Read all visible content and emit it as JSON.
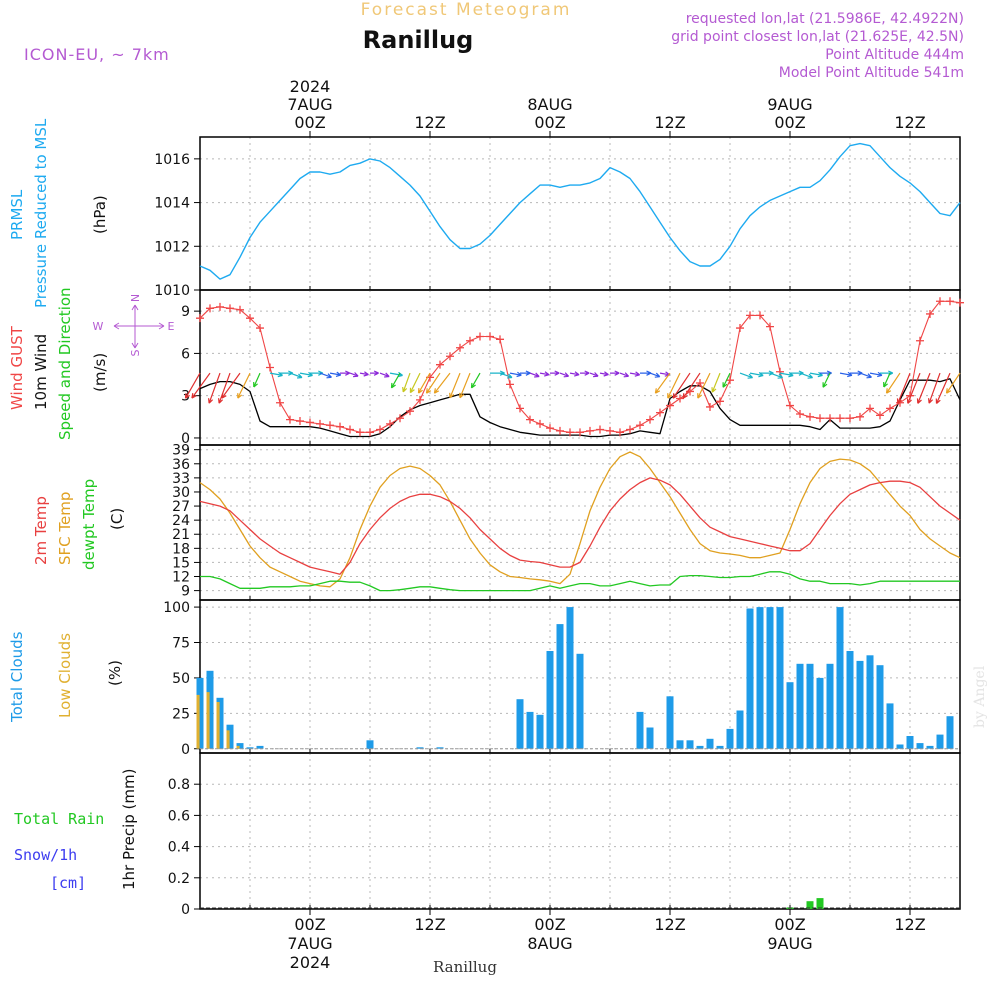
{
  "header": {
    "super_title": "Forecast Meteogram",
    "location": "Ranillug",
    "model": "ICON-EU, ~ 7km",
    "requested": "requested lon,lat (21.5986E, 42.4922N)",
    "grid_point": "grid point closest lon,lat (21.625E, 42.5N)",
    "point_altitude": "Point Altitude 444m",
    "model_altitude": "Model Point Altitude 541m",
    "footer_location": "Ranillug",
    "watermark": "by Angel"
  },
  "time_axis": {
    "top_labels": [
      {
        "hour": 0,
        "lines": [
          "2024",
          "7AUG",
          "00Z"
        ]
      },
      {
        "hour": 12,
        "lines": [
          "12Z"
        ]
      },
      {
        "hour": 24,
        "lines": [
          "8AUG",
          "00Z"
        ]
      },
      {
        "hour": 36,
        "lines": [
          "12Z"
        ]
      },
      {
        "hour": 48,
        "lines": [
          "9AUG",
          "00Z"
        ]
      },
      {
        "hour": 60,
        "lines": [
          "12Z"
        ]
      }
    ],
    "bottom_labels": [
      {
        "hour": 0,
        "lines": [
          "00Z",
          "7AUG",
          "2024"
        ]
      },
      {
        "hour": 12,
        "lines": [
          "12Z"
        ]
      },
      {
        "hour": 24,
        "lines": [
          "00Z",
          "8AUG"
        ]
      },
      {
        "hour": 36,
        "lines": [
          "12Z"
        ]
      },
      {
        "hour": 48,
        "lines": [
          "00Z",
          "9AUG"
        ]
      },
      {
        "hour": 60,
        "lines": [
          "12Z"
        ]
      }
    ]
  },
  "colors": {
    "pressure": "#1eaaf0",
    "gust": "#f04646",
    "wind": "#000000",
    "temp": "#e84040",
    "sfc": "#e0a020",
    "dew": "#22c822",
    "total_cloud": "#1e9be8",
    "low_cloud": "#e0b030",
    "rain": "#22c822",
    "snow": "#3c3cf0",
    "meta": "#b45ad2",
    "super_title": "#f0c878"
  },
  "chart_data": [
    {
      "type": "line",
      "panel": "pressure",
      "labels": [
        "PRMSL",
        "Pressure Reduced to MSL"
      ],
      "unit": "(hPa)",
      "ylim": [
        1010,
        1017
      ],
      "yticks": [
        1010,
        1012,
        1014,
        1016
      ],
      "x_range_hours": [
        -11,
        65
      ],
      "x": [
        -11,
        -10,
        -9,
        -8,
        -7,
        -6,
        -5,
        -4,
        -3,
        -2,
        -1,
        0,
        1,
        2,
        3,
        4,
        5,
        6,
        7,
        8,
        9,
        10,
        11,
        12,
        13,
        14,
        15,
        16,
        17,
        18,
        19,
        20,
        21,
        22,
        23,
        24,
        25,
        26,
        27,
        28,
        29,
        30,
        31,
        32,
        33,
        34,
        35,
        36,
        37,
        38,
        39,
        40,
        41,
        42,
        43,
        44,
        45,
        46,
        47,
        48,
        49,
        50,
        51,
        52,
        53,
        54,
        55,
        56,
        57,
        58,
        59,
        60,
        61,
        62,
        63,
        64,
        65
      ],
      "values": [
        1011.1,
        1010.9,
        1010.5,
        1010.7,
        1011.5,
        1012.4,
        1013.1,
        1013.6,
        1014.1,
        1014.6,
        1015.1,
        1015.4,
        1015.4,
        1015.3,
        1015.4,
        1015.7,
        1015.8,
        1016.0,
        1015.9,
        1015.6,
        1015.2,
        1014.8,
        1014.3,
        1013.6,
        1012.9,
        1012.3,
        1011.9,
        1011.9,
        1012.1,
        1012.5,
        1013.0,
        1013.5,
        1014.0,
        1014.4,
        1014.8,
        1014.8,
        1014.7,
        1014.8,
        1014.8,
        1014.9,
        1015.1,
        1015.6,
        1015.4,
        1015.1,
        1014.5,
        1013.8,
        1013.1,
        1012.4,
        1011.8,
        1011.3,
        1011.1,
        1011.1,
        1011.4,
        1012.0,
        1012.8,
        1013.4,
        1013.8,
        1014.1,
        1014.3,
        1014.5,
        1014.7,
        1014.7,
        1015.0,
        1015.5,
        1016.1,
        1016.6,
        1016.7,
        1016.6,
        1016.1,
        1015.6,
        1015.2,
        1014.9,
        1014.5,
        1014.0,
        1013.5,
        1013.4,
        1014.0
      ]
    },
    {
      "type": "line",
      "panel": "wind",
      "labels": [
        "Wind GUST",
        "10m Wind",
        "Speed and Direction"
      ],
      "unit": "(m/s)",
      "compass": [
        "N",
        "W",
        "E",
        "S"
      ],
      "ylim": [
        -0.5,
        10.5
      ],
      "yticks": [
        0,
        3,
        6,
        9
      ],
      "x_range_hours": [
        -11,
        65
      ],
      "x": [
        -11,
        -10,
        -9,
        -8,
        -7,
        -6,
        -5,
        -4,
        -3,
        -2,
        -1,
        0,
        1,
        2,
        3,
        4,
        5,
        6,
        7,
        8,
        9,
        10,
        11,
        12,
        13,
        14,
        15,
        16,
        17,
        18,
        19,
        20,
        21,
        22,
        23,
        24,
        25,
        26,
        27,
        28,
        29,
        30,
        31,
        32,
        33,
        34,
        35,
        36,
        37,
        38,
        39,
        40,
        41,
        42,
        43,
        44,
        45,
        46,
        47,
        48,
        49,
        50,
        51,
        52,
        53,
        54,
        55,
        56,
        57,
        58,
        59,
        60,
        61,
        62,
        63,
        64,
        65
      ],
      "series": [
        {
          "name": "Wind GUST",
          "values": [
            8.5,
            9.2,
            9.3,
            9.2,
            9.1,
            8.5,
            7.8,
            5.0,
            2.5,
            1.3,
            1.2,
            1.1,
            1.0,
            0.9,
            0.8,
            0.6,
            0.4,
            0.4,
            0.6,
            1.0,
            1.4,
            1.9,
            2.7,
            4.3,
            5.2,
            5.8,
            6.4,
            6.9,
            7.2,
            7.2,
            7.0,
            3.8,
            2.1,
            1.3,
            1.0,
            0.7,
            0.5,
            0.4,
            0.4,
            0.5,
            0.6,
            0.5,
            0.4,
            0.6,
            0.9,
            1.3,
            1.8,
            2.3,
            2.8,
            3.3,
            3.9,
            2.2,
            2.6,
            4.1,
            7.8,
            8.7,
            8.7,
            7.9,
            4.7,
            2.3,
            1.7,
            1.5,
            1.4,
            1.4,
            1.4,
            1.4,
            1.5,
            2.1,
            1.6,
            2.1,
            2.5,
            3.0,
            6.9,
            8.8,
            9.7,
            9.7,
            9.6
          ]
        },
        {
          "name": "10m Wind",
          "values": [
            3.5,
            3.8,
            4.0,
            4.0,
            3.8,
            3.3,
            1.2,
            0.8,
            0.8,
            0.8,
            0.8,
            0.8,
            0.7,
            0.5,
            0.3,
            0.1,
            0.1,
            0.1,
            0.3,
            0.8,
            1.5,
            2.0,
            2.3,
            2.5,
            2.7,
            2.9,
            3.1,
            3.1,
            1.5,
            1.1,
            0.8,
            0.6,
            0.4,
            0.3,
            0.2,
            0.2,
            0.2,
            0.2,
            0.2,
            0.1,
            0.1,
            0.2,
            0.2,
            0.3,
            0.5,
            0.4,
            0.3,
            2.8,
            3.3,
            3.7,
            3.7,
            3.3,
            2.1,
            1.3,
            0.9,
            0.9,
            0.9,
            0.9,
            0.9,
            0.9,
            0.9,
            0.8,
            0.6,
            1.3,
            0.7,
            0.7,
            0.7,
            0.7,
            0.8,
            1.2,
            2.7,
            4.1,
            4.1,
            4.1,
            4.0,
            4.2,
            2.7
          ]
        }
      ]
    },
    {
      "type": "line",
      "panel": "temperature",
      "labels": [
        "2m Temp",
        "SFC Temp",
        "dewpt Temp"
      ],
      "unit": "(C)",
      "ylim": [
        7,
        40
      ],
      "yticks": [
        9,
        12,
        15,
        18,
        21,
        24,
        27,
        30,
        33,
        36,
        39
      ],
      "x_range_hours": [
        -11,
        65
      ],
      "x": [
        -11,
        -10,
        -9,
        -8,
        -7,
        -6,
        -5,
        -4,
        -3,
        -2,
        -1,
        0,
        1,
        2,
        3,
        4,
        5,
        6,
        7,
        8,
        9,
        10,
        11,
        12,
        13,
        14,
        15,
        16,
        17,
        18,
        19,
        20,
        21,
        22,
        23,
        24,
        25,
        26,
        27,
        28,
        29,
        30,
        31,
        32,
        33,
        34,
        35,
        36,
        37,
        38,
        39,
        40,
        41,
        42,
        43,
        44,
        45,
        46,
        47,
        48,
        49,
        50,
        51,
        52,
        53,
        54,
        55,
        56,
        57,
        58,
        59,
        60,
        61,
        62,
        63,
        64,
        65
      ],
      "series": [
        {
          "name": "2m Temp",
          "values": [
            28.0,
            27.5,
            27.0,
            26.0,
            24.0,
            22.0,
            20.0,
            18.5,
            17.0,
            16.0,
            15.0,
            14.0,
            13.5,
            13.0,
            12.5,
            15.0,
            19.0,
            22.0,
            24.5,
            26.5,
            28.0,
            29.0,
            29.5,
            29.5,
            29.0,
            28.0,
            26.5,
            24.5,
            22.0,
            20.0,
            18.0,
            16.5,
            15.5,
            15.2,
            15.0,
            14.5,
            14.0,
            14.0,
            15.0,
            18.5,
            22.5,
            26.0,
            28.5,
            30.5,
            32.0,
            33.0,
            32.5,
            31.5,
            29.5,
            27.0,
            24.5,
            22.5,
            21.5,
            20.5,
            20.0,
            19.5,
            19.0,
            18.5,
            18.0,
            17.5,
            17.5,
            19.0,
            22.0,
            25.0,
            27.5,
            29.5,
            30.5,
            31.5,
            32.0,
            32.3,
            32.3,
            32.0,
            31.0,
            29.0,
            27.0,
            25.5,
            24.0
          ]
        },
        {
          "name": "SFC Temp",
          "values": [
            32.0,
            30.5,
            28.5,
            25.5,
            22.0,
            18.5,
            16.0,
            14.0,
            13.0,
            12.0,
            11.0,
            10.5,
            10.0,
            9.8,
            11.5,
            16.0,
            22.0,
            27.0,
            31.0,
            33.5,
            35.0,
            35.5,
            35.0,
            33.5,
            31.5,
            28.0,
            24.0,
            20.0,
            17.0,
            14.5,
            13.0,
            12.0,
            11.8,
            11.5,
            11.3,
            11.0,
            10.5,
            12.5,
            19.0,
            26.0,
            31.0,
            35.0,
            37.5,
            38.5,
            37.5,
            35.0,
            32.0,
            29.0,
            25.5,
            22.0,
            19.0,
            17.5,
            17.0,
            16.8,
            16.5,
            16.0,
            16.0,
            16.5,
            17.0,
            22.0,
            27.5,
            32.0,
            35.0,
            36.5,
            37.0,
            36.8,
            36.0,
            34.5,
            32.0,
            29.5,
            27.0,
            25.0,
            22.0,
            20.0,
            18.5,
            17.0,
            16.0
          ]
        },
        {
          "name": "dewpt Temp",
          "values": [
            12.0,
            12.0,
            11.5,
            10.5,
            9.5,
            9.5,
            9.5,
            9.8,
            9.8,
            9.8,
            10.0,
            10.0,
            10.5,
            11.0,
            11.0,
            10.8,
            10.8,
            10.0,
            9.0,
            9.0,
            9.2,
            9.5,
            9.8,
            9.8,
            9.5,
            9.2,
            9.0,
            9.0,
            9.0,
            9.0,
            9.0,
            9.0,
            9.0,
            9.0,
            9.5,
            10.0,
            9.5,
            10.0,
            10.5,
            10.5,
            10.0,
            10.0,
            10.5,
            11.0,
            10.5,
            10.0,
            10.2,
            10.2,
            12.0,
            12.2,
            12.2,
            12.0,
            11.8,
            11.8,
            12.0,
            12.0,
            12.5,
            13.0,
            13.0,
            12.5,
            11.5,
            11.0,
            11.0,
            10.5,
            10.5,
            10.5,
            10.2,
            10.5,
            11.0,
            11.0,
            11.0,
            11.0,
            11.0,
            11.0,
            11.0,
            11.0,
            11.0
          ]
        }
      ]
    },
    {
      "type": "bar",
      "panel": "clouds",
      "labels": [
        "Total Clouds",
        "Low Clouds"
      ],
      "unit": "(%)",
      "ylim": [
        -3,
        105
      ],
      "yticks": [
        0,
        25,
        50,
        75,
        100
      ],
      "x_range_hours": [
        -11,
        65
      ],
      "x": [
        -11,
        -10,
        -9,
        -8,
        -7,
        -6,
        -5,
        -4,
        -3,
        -2,
        -1,
        0,
        1,
        2,
        3,
        4,
        5,
        6,
        7,
        8,
        9,
        10,
        11,
        12,
        13,
        14,
        15,
        16,
        17,
        18,
        19,
        20,
        21,
        22,
        23,
        24,
        25,
        26,
        27,
        28,
        29,
        30,
        31,
        32,
        33,
        34,
        35,
        36,
        37,
        38,
        39,
        40,
        41,
        42,
        43,
        44,
        45,
        46,
        47,
        48,
        49,
        50,
        51,
        52,
        53,
        54,
        55,
        56,
        57,
        58,
        59,
        60,
        61,
        62,
        63,
        64,
        65
      ],
      "series": [
        {
          "name": "Total Clouds",
          "values": [
            50,
            55,
            36,
            17,
            4,
            1,
            2,
            0,
            0,
            0,
            0,
            0,
            0,
            0,
            0,
            0,
            0,
            6,
            0,
            0,
            0,
            0,
            1,
            0,
            1,
            0,
            0,
            0,
            0,
            0,
            0,
            0,
            35,
            26,
            24,
            69,
            88,
            100,
            67,
            0,
            0,
            0,
            0,
            0,
            26,
            15,
            0,
            37,
            6,
            6,
            2,
            7,
            2,
            14,
            27,
            99,
            100,
            100,
            100,
            47,
            60,
            60,
            50,
            60,
            100,
            69,
            62,
            66,
            59,
            32,
            3,
            9,
            4,
            2,
            10,
            23,
            0
          ]
        },
        {
          "name": "Low Clouds",
          "values": [
            38,
            40,
            33,
            13,
            2,
            0,
            0,
            0,
            0,
            0,
            0,
            0,
            0,
            0,
            0,
            0,
            0,
            0,
            0,
            0,
            0,
            0,
            0,
            0,
            0,
            0,
            0,
            0,
            0,
            0,
            0,
            0,
            0,
            0,
            0,
            0,
            0,
            0,
            0,
            0,
            0,
            0,
            0,
            0,
            0,
            0,
            0,
            0,
            0,
            0,
            0,
            0,
            0,
            0,
            0,
            0,
            0,
            0,
            0,
            0,
            0,
            0,
            0,
            0,
            0,
            0,
            0,
            0,
            0,
            0,
            0,
            0,
            0,
            0,
            0,
            0,
            0
          ]
        }
      ]
    },
    {
      "type": "bar",
      "panel": "precip",
      "labels": [
        "Total Rain",
        "Snow/1h",
        "[cm]"
      ],
      "unit": "1hr Precip (mm)",
      "ylim": [
        0,
        1.0
      ],
      "yticks": [
        0,
        0.2,
        0.4,
        0.6,
        0.8
      ],
      "ytick_labels": [
        "0",
        "0.2",
        "0.4",
        "0.6",
        "0.8"
      ],
      "x_range_hours": [
        -11,
        65
      ],
      "x": [
        48,
        50,
        51
      ],
      "series": [
        {
          "name": "Total Rain",
          "values": [
            0.01,
            0.05,
            0.07
          ]
        }
      ]
    }
  ]
}
